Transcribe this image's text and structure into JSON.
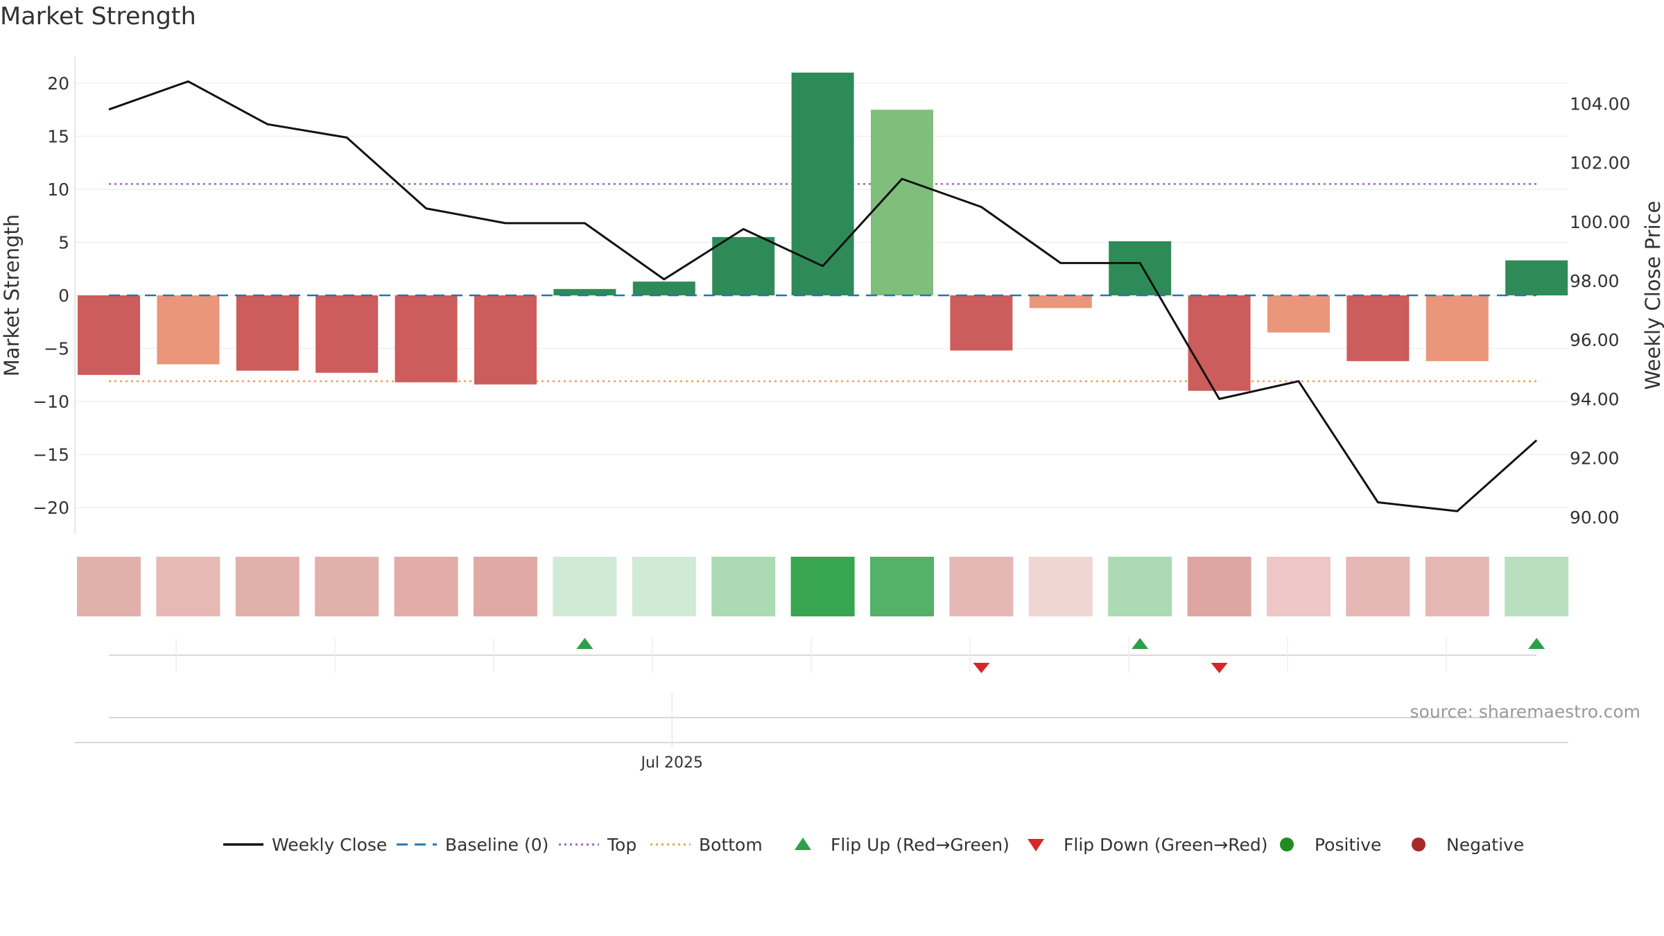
{
  "chart_data": {
    "type": "bar",
    "title": "Market Strength",
    "ylabel_left": "Market Strength",
    "ylabel_right": "Weekly Close Price",
    "ylim_left": [
      -22.5,
      22.5
    ],
    "ylim_right": [
      89.0,
      105.4
    ],
    "yticks_left": [
      20,
      15,
      10,
      5,
      0,
      -5,
      -10,
      -15,
      -20
    ],
    "ytick_labels_left": [
      "20",
      "15",
      "10",
      "5",
      "0",
      "−5",
      "−10",
      "−15",
      "−20"
    ],
    "yticks_right": [
      104,
      102,
      100,
      98,
      96,
      94,
      92,
      90
    ],
    "ytick_labels_right": [
      "104.00",
      "102.00",
      "100.00",
      "98.00",
      "96.00",
      "94.00",
      "92.00",
      "90.00"
    ],
    "x_tick_label": "Jul 2025",
    "x_tick_index": 7.1,
    "source": "source: sharemaestro.com",
    "strength": [
      -7.5,
      -6.5,
      -7.1,
      -7.3,
      -8.2,
      -8.4,
      0.6,
      1.3,
      5.5,
      21.0,
      17.5,
      -5.2,
      -1.2,
      5.1,
      -9.0,
      -3.5,
      -6.2,
      -6.2,
      3.3
    ],
    "strength_colors": [
      "#cd5c5c",
      "#e9967a",
      "#cd5c5c",
      "#cd5c5c",
      "#cd5c5c",
      "#cd5c5c",
      "#2e8b57",
      "#2e8b57",
      "#2e8b57",
      "#2e8b57",
      "#7fbf7b",
      "#cd5c5c",
      "#e9967a",
      "#2e8b57",
      "#cd5c5c",
      "#e9967a",
      "#cd5c5c",
      "#e9967a",
      "#2e8b57"
    ],
    "weekly_close": [
      103.8,
      104.75,
      103.3,
      102.85,
      100.45,
      99.95,
      99.95,
      98.05,
      99.75,
      98.5,
      101.45,
      100.5,
      98.6,
      98.6,
      94.0,
      94.6,
      90.5,
      90.2,
      92.6
    ],
    "heat_colors": [
      "#e2b0ab",
      "#e6b9b4",
      "#e2b0ab",
      "#e2b0ab",
      "#e2aca7",
      "#e0a9a4",
      "#d1ead6",
      "#d1ead6",
      "#acdab3",
      "#38a650",
      "#53b168",
      "#e6b8b5",
      "#f0d6d3",
      "#acdab3",
      "#dea6a2",
      "#edc7c6",
      "#e6b8b5",
      "#e6b8b5",
      "#b8e0be"
    ],
    "top_line": 10.5,
    "bottom_line": -8.1,
    "baseline": 0,
    "flips": [
      {
        "index": 6,
        "direction": "up"
      },
      {
        "index": 11,
        "direction": "down"
      },
      {
        "index": 13,
        "direction": "up"
      },
      {
        "index": 14,
        "direction": "down"
      },
      {
        "index": 18,
        "direction": "up"
      }
    ],
    "legend": [
      {
        "label": "Weekly Close",
        "kind": "line-solid",
        "color": "#111111"
      },
      {
        "label": "Baseline (0)",
        "kind": "line-dashed",
        "color": "#1f77b4"
      },
      {
        "label": "Top",
        "kind": "line-dotted",
        "color": "#9467bd"
      },
      {
        "label": "Bottom",
        "kind": "line-dotted",
        "color": "#f0a050"
      },
      {
        "label": "Flip Up (Red→Green)",
        "kind": "triangle-up",
        "color": "#2ca048"
      },
      {
        "label": "Flip Down (Green→Red)",
        "kind": "triangle-down",
        "color": "#d62728"
      },
      {
        "label": "Positive",
        "kind": "circle",
        "color": "#228b22"
      },
      {
        "label": "Negative",
        "kind": "circle",
        "color": "#a52a2a"
      }
    ],
    "legend_placement": "bottom",
    "grid": true
  }
}
